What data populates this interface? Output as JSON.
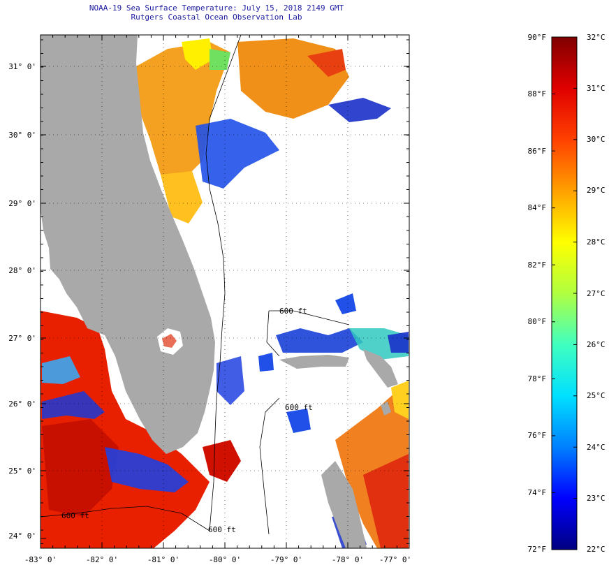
{
  "title": {
    "line1": "NOAA-19 Sea Surface Temperature:  July 15, 2018 2149 GMT",
    "line2": "Rutgers Coastal Ocean Observation Lab"
  },
  "map": {
    "lon_labels": [
      "-83° 0'",
      "-82° 0'",
      "-81° 0'",
      "-80° 0'",
      "-79° 0'",
      "-78° 0'",
      "-77° 0'"
    ],
    "lat_labels": [
      "31° 0'",
      "30° 0'",
      "29° 0'",
      "28° 0'",
      "27° 0'",
      "26° 0'",
      "25° 0'",
      "24° 0'"
    ],
    "lon_range": [
      -83,
      -77
    ],
    "lat_range": [
      23.8,
      31.45
    ],
    "depth_labels": [
      "600 ft",
      "600 ft",
      "600 ft",
      "600 ft"
    ],
    "colors": {
      "land": "#a9a9a9",
      "ocean_missing": "#ffffff"
    }
  },
  "colorbar": {
    "fahrenheit_labels": [
      "90°F",
      "88°F",
      "86°F",
      "84°F",
      "82°F",
      "80°F",
      "78°F",
      "76°F",
      "74°F",
      "72°F"
    ],
    "celsius_labels": [
      "32°C",
      "31°C",
      "30°C",
      "29°C",
      "28°C",
      "27°C",
      "26°C",
      "25°C",
      "24°C",
      "23°C",
      "22°C"
    ],
    "range_c": [
      22,
      32
    ],
    "stops": [
      "#000080",
      "#0000ff",
      "#0080ff",
      "#00e0ff",
      "#40ffc0",
      "#b0ff40",
      "#ffff00",
      "#ffa000",
      "#ff4000",
      "#e00000",
      "#800000"
    ]
  }
}
